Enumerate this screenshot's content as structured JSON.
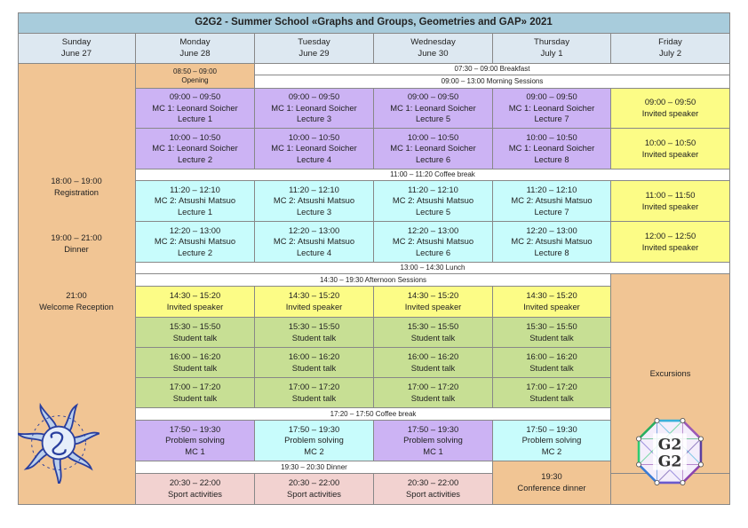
{
  "title": "G2G2 - Summer School «Graphs and Groups, Geometries and GAP» 2021",
  "days": [
    {
      "name": "Sunday",
      "date": "June 27"
    },
    {
      "name": "Monday",
      "date": "June 28"
    },
    {
      "name": "Tuesday",
      "date": "June 29"
    },
    {
      "name": "Wednesday",
      "date": "June 30"
    },
    {
      "name": "Thursday",
      "date": "July 1"
    },
    {
      "name": "Friday",
      "date": "July 2"
    }
  ],
  "sunday": [
    {
      "time": "18:00 – 19:00",
      "label": "Registration"
    },
    {
      "time": "19:00 – 21:00",
      "label": "Dinner"
    },
    {
      "time": "21:00",
      "label": "Welcome Reception"
    }
  ],
  "opening": {
    "time": "08:50 – 09:00",
    "label": "Opening"
  },
  "breakfast": "07:30 – 09:00 Breakfast",
  "morning_sessions": "09:00 – 13:00 Morning Sessions",
  "coffee_morning": "11:00 – 11:20 Coffee break",
  "lunch": "13:00 – 14:30 Lunch",
  "afternoon_sessions": "14:30 – 19:30 Afternoon Sessions",
  "coffee_afternoon": "17:20 – 17:50 Coffee break",
  "dinner": "19:30 – 20:30 Dinner",
  "mc1": [
    {
      "time": "09:00 – 09:50",
      "course": "MC 1: Leonard Soicher",
      "lectures": [
        "Lecture 1",
        "Lecture 3",
        "Lecture 5",
        "Lecture 7"
      ]
    },
    {
      "time": "10:00 – 10:50",
      "course": "MC 1: Leonard Soicher",
      "lectures": [
        "Lecture 2",
        "Lecture 4",
        "Lecture 6",
        "Lecture 8"
      ]
    }
  ],
  "mc2": [
    {
      "time": "11:20 – 12:10",
      "course": "MC 2: Atsushi Matsuo",
      "lectures": [
        "Lecture 1",
        "Lecture 3",
        "Lecture 5",
        "Lecture 7"
      ]
    },
    {
      "time": "12:20 – 13:00",
      "course": "MC 2: Atsushi Matsuo",
      "lectures": [
        "Lecture 2",
        "Lecture 4",
        "Lecture 6",
        "Lecture 8"
      ]
    }
  ],
  "friday_morning": [
    {
      "time": "09:00 – 09:50",
      "label": "Invited speaker"
    },
    {
      "time": "10:00 – 10:50",
      "label": "Invited speaker"
    },
    {
      "time": "11:00 – 11:50",
      "label": "Invited speaker"
    },
    {
      "time": "12:00 – 12:50",
      "label": "Invited speaker"
    }
  ],
  "afternoon_invited": {
    "time": "14:30 – 15:20",
    "label": "Invited speaker"
  },
  "student_talks": [
    {
      "time": "15:30 – 15:50",
      "label": "Student talk"
    },
    {
      "time": "16:00 – 16:20",
      "label": "Student talk"
    },
    {
      "time": "17:00 – 17:20",
      "label": "Student talk"
    }
  ],
  "problem_solving": {
    "time": "17:50 – 19:30",
    "label": "Problem solving",
    "groups": [
      "MC 1",
      "MC 2",
      "MC 1",
      "MC 2"
    ]
  },
  "sport": {
    "time": "20:30 – 22:00",
    "label": "Sport activities"
  },
  "conference_dinner": {
    "time": "19:30",
    "label": "Conference dinner"
  },
  "excursions": "Excursions",
  "logo_left": {
    "name": "school-logo",
    "color": "#2a3f9e"
  },
  "logo_right": {
    "name": "g2g2-logo",
    "text_top": "G2",
    "text_bottom": "G2"
  }
}
